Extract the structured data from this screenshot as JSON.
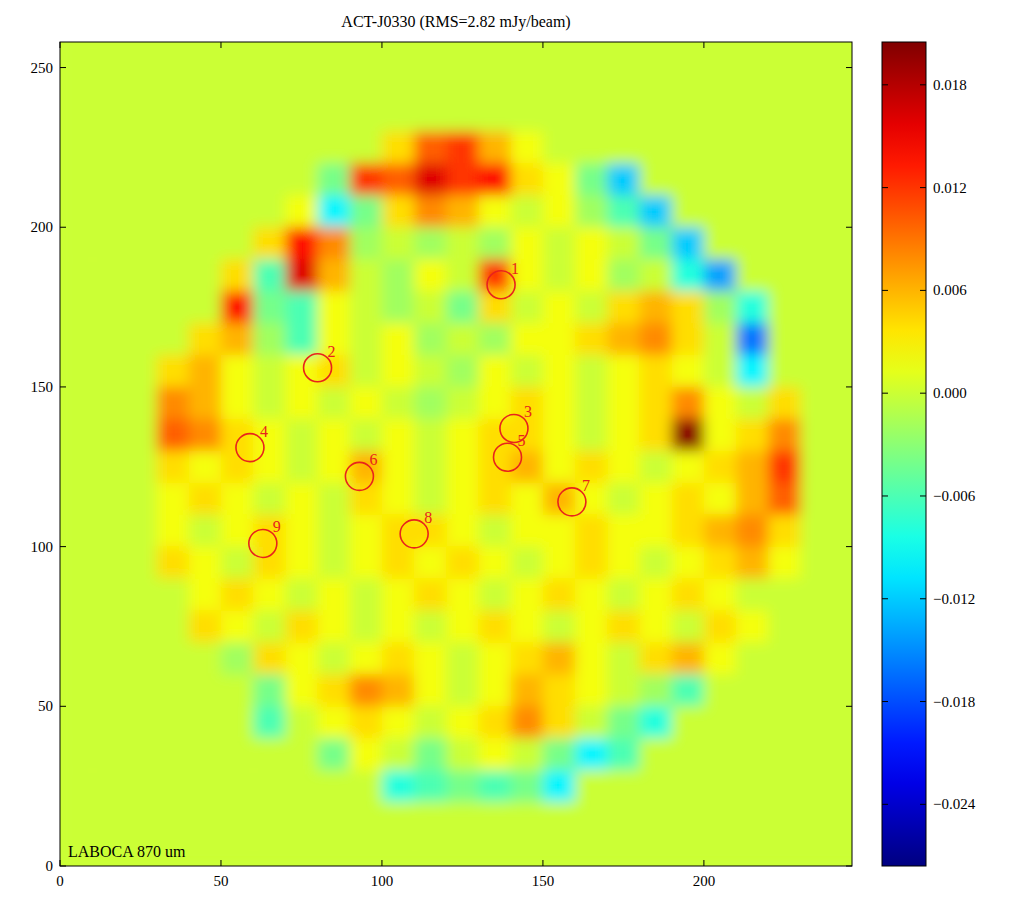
{
  "chart_data": {
    "type": "heatmap",
    "title": "ACT-J0330 (RMS=2.82 mJy/beam)",
    "annotation": "LABOCA 870 um",
    "xlim": [
      0,
      246
    ],
    "ylim": [
      0,
      258
    ],
    "xticks": [
      0,
      50,
      100,
      150,
      200
    ],
    "yticks": [
      0,
      50,
      100,
      150,
      200,
      250
    ],
    "x_bins": [
      0,
      10,
      20,
      30,
      40,
      50,
      60,
      70,
      80,
      90,
      100,
      110,
      120,
      130,
      140,
      150,
      160,
      170,
      180,
      190,
      200,
      210,
      220,
      230,
      240,
      250
    ],
    "y_bins": [
      260,
      250,
      240,
      230,
      220,
      210,
      200,
      190,
      180,
      170,
      160,
      150,
      140,
      130,
      120,
      110,
      100,
      90,
      80,
      70,
      60,
      50,
      40,
      30,
      20,
      10,
      0
    ],
    "values": [
      [
        0,
        0,
        0,
        0,
        0,
        0,
        0,
        0,
        0,
        0,
        0,
        0,
        0,
        0,
        0,
        0,
        0,
        0,
        0,
        0,
        0,
        0,
        0,
        0,
        0
      ],
      [
        0,
        0,
        0,
        0,
        0,
        0,
        0,
        0,
        0,
        0,
        0,
        0,
        0,
        0,
        0,
        0,
        0,
        0,
        0,
        0,
        0,
        0,
        0,
        0,
        0
      ],
      [
        0,
        0,
        0,
        0,
        0,
        0,
        0,
        0,
        0,
        0,
        0,
        0,
        0,
        0,
        0,
        0,
        0,
        0,
        0,
        0,
        0,
        0,
        0,
        0,
        0
      ],
      [
        0,
        0,
        0,
        0,
        0,
        0,
        0,
        0,
        0,
        0,
        0.004,
        0.01,
        0.012,
        0.006,
        0.002,
        0,
        0,
        0,
        0,
        0,
        0,
        0,
        0,
        0,
        0
      ],
      [
        0,
        0,
        0,
        0,
        0,
        0,
        0,
        0,
        -0.004,
        0.012,
        0.01,
        0.016,
        0.012,
        0.014,
        0.004,
        0.002,
        -0.004,
        -0.012,
        0,
        0,
        0,
        0,
        0,
        0,
        0
      ],
      [
        0,
        0,
        0,
        0,
        0,
        0,
        0,
        0.002,
        -0.01,
        -0.004,
        0.004,
        0.008,
        0.006,
        0.002,
        0,
        0.002,
        -0.002,
        -0.006,
        -0.012,
        0,
        0,
        0,
        0,
        0,
        0
      ],
      [
        0,
        0,
        0,
        0,
        0,
        0,
        0.004,
        0.014,
        0.008,
        -0.002,
        0,
        -0.002,
        0,
        -0.002,
        0.002,
        0,
        0.002,
        0,
        -0.004,
        -0.012,
        0,
        0,
        0,
        0,
        0
      ],
      [
        0,
        0,
        0,
        0,
        0,
        0.004,
        -0.006,
        0.016,
        0.006,
        0,
        -0.002,
        0.002,
        0,
        0.012,
        0.002,
        0,
        0.002,
        -0.002,
        0,
        -0.008,
        -0.014,
        0,
        0,
        0,
        0
      ],
      [
        0,
        0,
        0,
        0,
        0,
        0.014,
        -0.004,
        -0.006,
        0.002,
        0,
        -0.002,
        0,
        -0.004,
        0.004,
        0,
        0.002,
        0,
        0.004,
        0.006,
        0.004,
        -0.002,
        -0.008,
        0,
        0,
        0
      ],
      [
        0,
        0,
        0,
        0,
        0.004,
        0.006,
        -0.002,
        -0.006,
        0.002,
        0,
        0.002,
        -0.002,
        0,
        -0.002,
        0.002,
        0.002,
        0.004,
        0.006,
        0.008,
        0.004,
        0,
        -0.016,
        0,
        0,
        0
      ],
      [
        0,
        0,
        0,
        0.004,
        0.006,
        0.002,
        0,
        0.002,
        0.004,
        0,
        0.002,
        0,
        -0.002,
        0.002,
        0,
        0.002,
        0,
        0.002,
        0.004,
        0.002,
        0,
        -0.01,
        0,
        0,
        0
      ],
      [
        0,
        0,
        0,
        0.008,
        0.006,
        0.002,
        0,
        0.002,
        0,
        0.002,
        0,
        -0.002,
        0,
        0.002,
        0.004,
        0.002,
        0,
        0.002,
        0.004,
        0.008,
        0.002,
        0,
        0.004,
        0,
        0
      ],
      [
        0,
        0,
        0,
        0.01,
        0.008,
        0.004,
        0.002,
        0,
        0.002,
        0,
        0.002,
        0,
        0.002,
        0.004,
        0.004,
        0.002,
        0,
        0.002,
        0.004,
        0.02,
        0.002,
        0.004,
        0.008,
        0,
        0
      ],
      [
        0,
        0,
        0,
        0.004,
        0.002,
        0.004,
        0.002,
        0,
        0.002,
        0.006,
        0.002,
        0,
        0.002,
        0.004,
        0.006,
        0.002,
        0.004,
        0.002,
        0,
        0.002,
        0.004,
        0.006,
        0.012,
        0,
        0
      ],
      [
        0,
        0,
        0,
        0.002,
        0.004,
        0.002,
        0,
        0.002,
        0,
        0.004,
        0.002,
        0,
        0.002,
        0.004,
        0.002,
        0.006,
        0.002,
        0,
        0.002,
        0.004,
        0.002,
        0.006,
        0.01,
        0,
        0
      ],
      [
        0,
        0,
        0,
        0.002,
        0,
        0.002,
        0.004,
        0.002,
        0,
        0.002,
        0.004,
        0.004,
        0.002,
        0,
        0.002,
        0.002,
        0.004,
        0.002,
        0.002,
        0.004,
        0.006,
        0.008,
        0.004,
        0,
        0
      ],
      [
        0,
        0,
        0,
        0.004,
        0.002,
        0,
        0.004,
        0.002,
        0,
        0.002,
        0.004,
        0.002,
        0.004,
        0.002,
        0,
        0.002,
        0.004,
        0.002,
        0,
        0.002,
        0.004,
        0.006,
        0.002,
        0,
        0
      ],
      [
        0,
        0,
        0,
        0,
        0.002,
        0.004,
        0.002,
        0,
        0.002,
        0,
        0.002,
        0.004,
        0.002,
        0,
        0.002,
        0.004,
        0.002,
        0,
        0.002,
        0.004,
        0.002,
        0,
        0,
        0,
        0
      ],
      [
        0,
        0,
        0,
        0,
        0.004,
        0.002,
        0,
        0.004,
        0.002,
        0,
        0.002,
        0,
        0.002,
        0.004,
        0.002,
        0,
        0.002,
        0.004,
        0.002,
        0,
        0.004,
        0.002,
        0,
        0,
        0
      ],
      [
        0,
        0,
        0,
        0,
        0,
        -0.002,
        0.004,
        0.002,
        0,
        0.002,
        0.004,
        0.002,
        0,
        0.002,
        0.004,
        0.006,
        0.002,
        0,
        0.004,
        0.006,
        0.002,
        0,
        0,
        0,
        0
      ],
      [
        0,
        0,
        0,
        0,
        0,
        0,
        -0.004,
        0.002,
        0.004,
        0.008,
        0.006,
        0.002,
        0,
        0.002,
        0.006,
        0.004,
        0.002,
        0,
        -0.002,
        -0.006,
        0,
        0,
        0,
        0,
        0
      ],
      [
        0,
        0,
        0,
        0,
        0,
        0,
        -0.006,
        0,
        0.002,
        0.004,
        0.002,
        0,
        0.002,
        0.004,
        0.008,
        0.004,
        0,
        -0.004,
        -0.008,
        0,
        0,
        0,
        0,
        0,
        0
      ],
      [
        0,
        0,
        0,
        0,
        0,
        0,
        0,
        0,
        -0.004,
        0.002,
        0,
        -0.004,
        0,
        0.002,
        0,
        -0.004,
        -0.01,
        -0.006,
        0,
        0,
        0,
        0,
        0,
        0,
        0
      ],
      [
        0,
        0,
        0,
        0,
        0,
        0,
        0,
        0,
        0,
        0,
        -0.008,
        -0.006,
        -0.004,
        -0.006,
        -0.004,
        -0.01,
        0,
        0,
        0,
        0,
        0,
        0,
        0,
        0,
        0
      ],
      [
        0,
        0,
        0,
        0,
        0,
        0,
        0,
        0,
        0,
        0,
        0,
        0,
        0,
        0,
        0,
        0,
        0,
        0,
        0,
        0,
        0,
        0,
        0,
        0,
        0
      ],
      [
        0,
        0,
        0,
        0,
        0,
        0,
        0,
        0,
        0,
        0,
        0,
        0,
        0,
        0,
        0,
        0,
        0,
        0,
        0,
        0,
        0,
        0,
        0,
        0,
        0
      ]
    ],
    "colorbar": {
      "lim": [
        -0.0276,
        0.0205
      ],
      "ticks": [
        0.018,
        0.012,
        0.006,
        {
          "value": 0,
          "label": "0.000"
        },
        {
          "value": -0.006,
          "label": "−0.006"
        },
        {
          "value": -0.012,
          "label": "−0.012"
        },
        {
          "value": -0.018,
          "label": "−0.018"
        },
        {
          "value": -0.024,
          "label": "−0.024"
        }
      ]
    },
    "color": "#e8231c",
    "sources": [
      {
        "label": "1",
        "x": 137,
        "y": 182
      },
      {
        "label": "2",
        "x": 80,
        "y": 156
      },
      {
        "label": "3",
        "x": 141,
        "y": 137
      },
      {
        "label": "4",
        "x": 59,
        "y": 131
      },
      {
        "label": "5",
        "x": 139,
        "y": 128
      },
      {
        "label": "6",
        "x": 93,
        "y": 122
      },
      {
        "label": "7",
        "x": 159,
        "y": 114
      },
      {
        "label": "8",
        "x": 110,
        "y": 104
      },
      {
        "label": "9",
        "x": 63,
        "y": 101
      }
    ]
  }
}
